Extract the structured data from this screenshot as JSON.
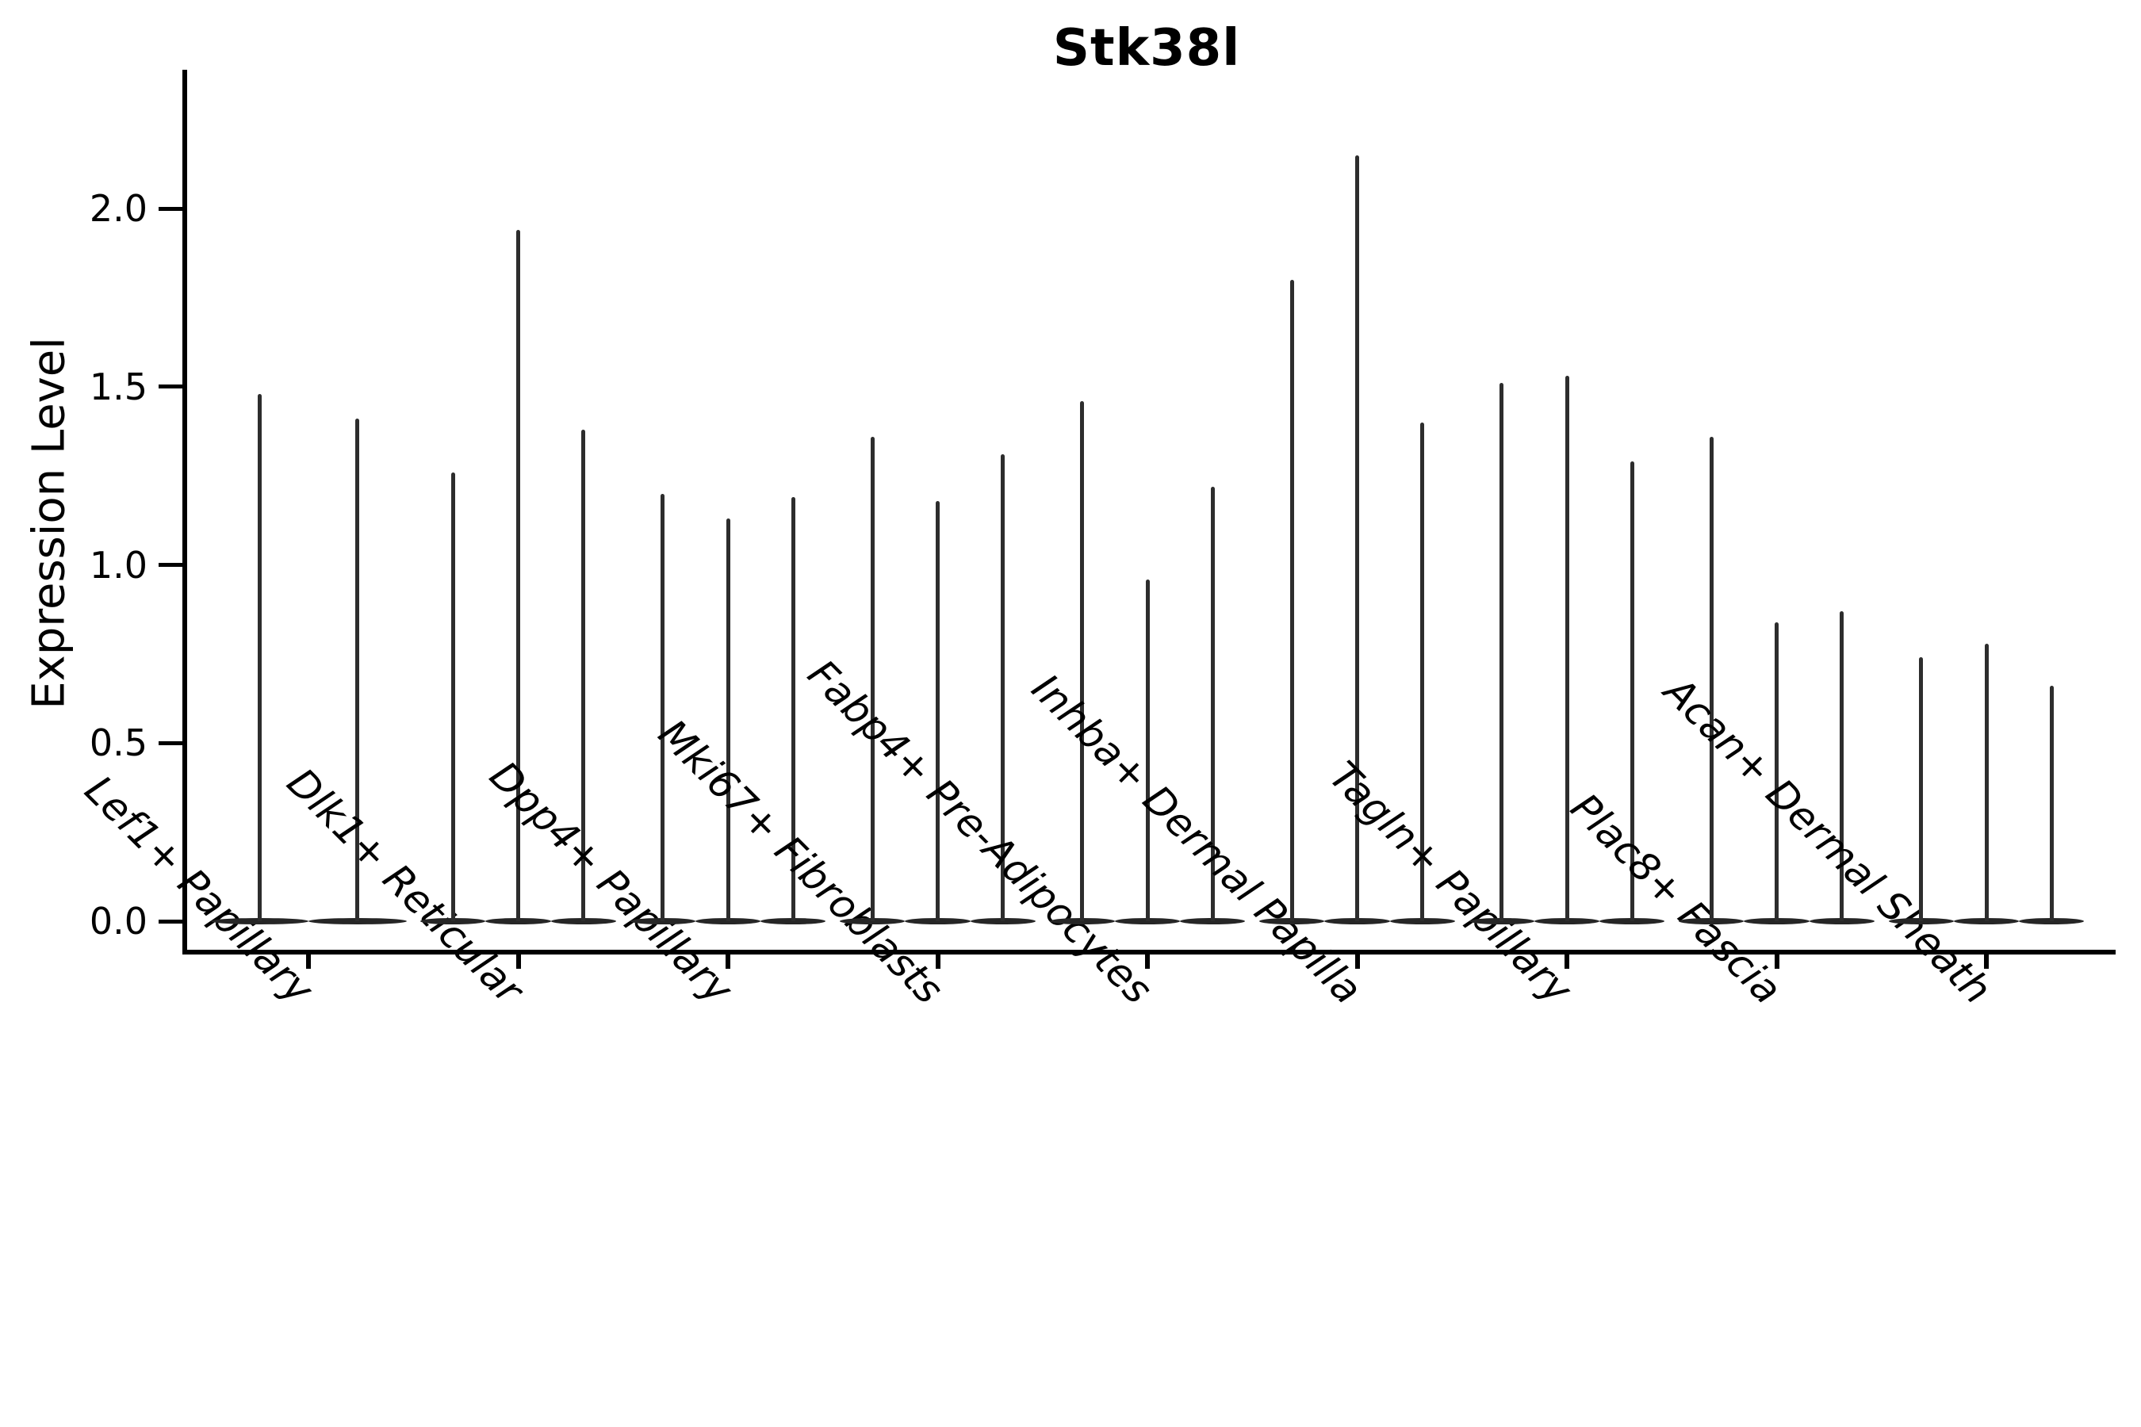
{
  "figure": {
    "background": "#ffffff",
    "ink_color": "#000000",
    "violin_color": "#2d2d2d"
  },
  "chart_data": {
    "type": "violin",
    "title": "Stk38l",
    "xlabel": "",
    "ylabel": "Expression Level",
    "ylim": [
      -0.08,
      2.39
    ],
    "yticks": [
      0.0,
      0.5,
      1.0,
      1.5,
      2.0
    ],
    "ytick_labels": [
      "0.0",
      "0.5",
      "1.0",
      "1.5",
      "2.0"
    ],
    "grid": "off",
    "legend": "none",
    "spines": [
      "left",
      "bottom"
    ],
    "x_tick_rotation": 45,
    "x_tick_style": "italic",
    "violin_shape": "mass concentrated at 0 with thin spike up to the maximum expression value",
    "categories": [
      "Lef1+ Papillary",
      "Dlk1+ Reticular",
      "Dpp4+ Papillary",
      "Mki67+ Fibroblasts",
      "Fabp4+ Pre-Adipocytes",
      "Inhba+ Dermal Papilla",
      "Tagln+ Papillary",
      "Plac8+ Fascia",
      "Acan+ Dermal Sheath"
    ],
    "groups": [
      {
        "label": "Lef1+ Papillary",
        "violin_maxima": [
          1.48,
          1.41
        ]
      },
      {
        "label": "Dlk1+ Reticular",
        "violin_maxima": [
          1.26,
          1.94,
          1.38
        ]
      },
      {
        "label": "Dpp4+ Papillary",
        "violin_maxima": [
          1.2,
          1.13,
          1.19
        ]
      },
      {
        "label": "Mki67+ Fibroblasts",
        "violin_maxima": [
          1.36,
          1.18,
          1.31
        ]
      },
      {
        "label": "Fabp4+ Pre-Adipocytes",
        "violin_maxima": [
          1.46,
          0.96,
          1.22
        ]
      },
      {
        "label": "Inhba+ Dermal Papilla",
        "violin_maxima": [
          1.8,
          2.15,
          1.4
        ]
      },
      {
        "label": "Tagln+ Papillary",
        "violin_maxima": [
          1.51,
          1.53,
          1.29
        ]
      },
      {
        "label": "Plac8+ Fascia",
        "violin_maxima": [
          1.36,
          0.84,
          0.87
        ]
      },
      {
        "label": "Acan+ Dermal Sheath",
        "violin_maxima": [
          0.74,
          0.78,
          0.66
        ]
      }
    ]
  }
}
